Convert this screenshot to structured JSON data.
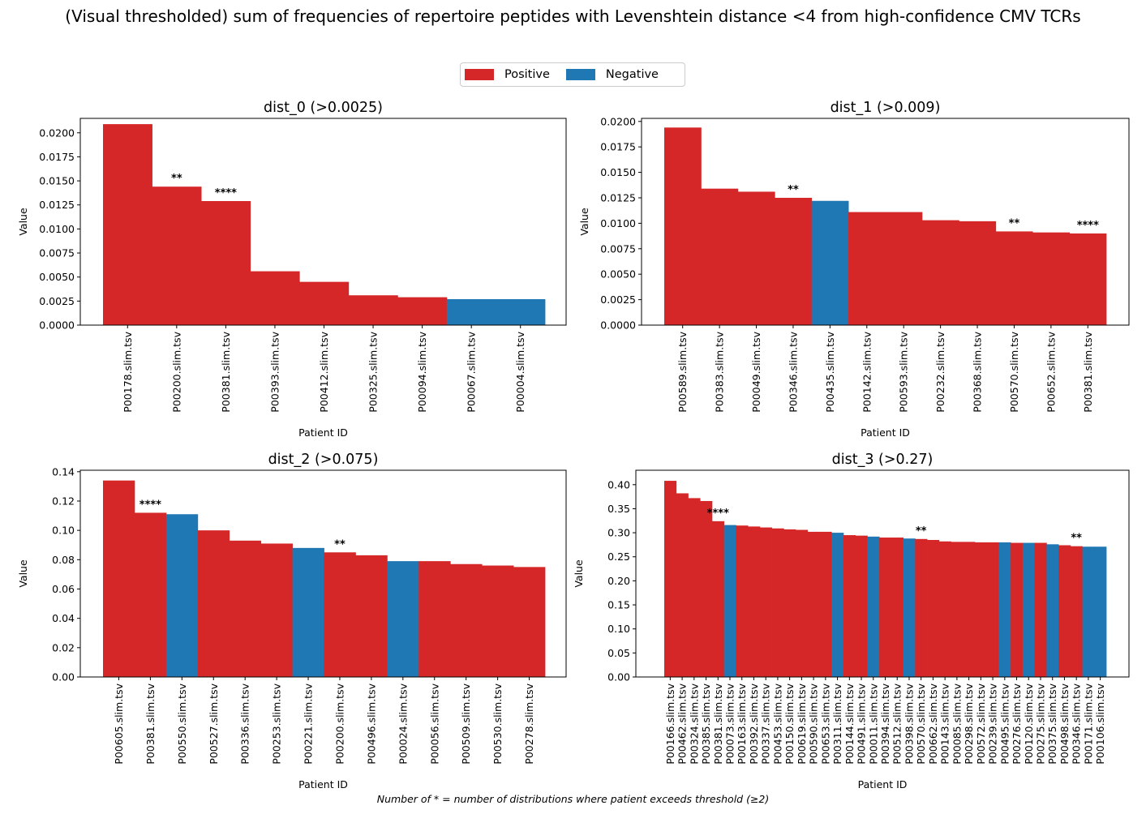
{
  "title": "(Visual thresholded) sum of frequencies of repertoire peptides with Levenshtein distance <4 from high-confidence CMV TCRs",
  "footnote": "Number of * = number of distributions where patient exceeds threshold (≥2)",
  "legend": {
    "placement": "top-center",
    "items": [
      {
        "label": "Positive",
        "color": "#d62728"
      },
      {
        "label": "Negative",
        "color": "#1f77b4"
      }
    ]
  },
  "colors": {
    "positive": "#d62728",
    "negative": "#1f77b4"
  },
  "chart_data": [
    {
      "type": "bar",
      "title": "dist_0 (>0.0025)",
      "xlabel": "Patient ID",
      "ylabel": "Value",
      "ylim": [
        0,
        0.0215
      ],
      "yticks": [
        0,
        0.0025,
        0.005,
        0.0075,
        0.01,
        0.0125,
        0.015,
        0.0175,
        0.02
      ],
      "ytick_labels": [
        "0.0000",
        "0.0025",
        "0.0050",
        "0.0075",
        "0.0100",
        "0.0125",
        "0.0150",
        "0.0175",
        "0.0200"
      ],
      "grid": false,
      "categories": [
        "P00178.slim.tsv",
        "P00200.slim.tsv",
        "P00381.slim.tsv",
        "P00393.slim.tsv",
        "P00412.slim.tsv",
        "P00325.slim.tsv",
        "P00094.slim.tsv",
        "P00067.slim.tsv",
        "P00004.slim.tsv"
      ],
      "values": [
        0.0209,
        0.0144,
        0.0129,
        0.0056,
        0.0045,
        0.0031,
        0.0029,
        0.0027,
        0.0027
      ],
      "status": [
        "Positive",
        "Positive",
        "Positive",
        "Positive",
        "Positive",
        "Positive",
        "Positive",
        "Negative",
        "Negative"
      ],
      "stars": [
        "",
        "**",
        "****",
        "",
        "",
        "",
        "",
        "",
        ""
      ]
    },
    {
      "type": "bar",
      "title": "dist_1 (>0.009)",
      "xlabel": "Patient ID",
      "ylabel": "Value",
      "ylim": [
        0,
        0.0203
      ],
      "yticks": [
        0,
        0.0025,
        0.005,
        0.0075,
        0.01,
        0.0125,
        0.015,
        0.0175,
        0.02
      ],
      "ytick_labels": [
        "0.0000",
        "0.0025",
        "0.0050",
        "0.0075",
        "0.0100",
        "0.0125",
        "0.0150",
        "0.0175",
        "0.0200"
      ],
      "grid": false,
      "categories": [
        "P00589.slim.tsv",
        "P00383.slim.tsv",
        "P00049.slim.tsv",
        "P00346.slim.tsv",
        "P00435.slim.tsv",
        "P00142.slim.tsv",
        "P00593.slim.tsv",
        "P00232.slim.tsv",
        "P00368.slim.tsv",
        "P00570.slim.tsv",
        "P00652.slim.tsv",
        "P00381.slim.tsv"
      ],
      "values": [
        0.0194,
        0.0134,
        0.0131,
        0.0125,
        0.0122,
        0.0111,
        0.0111,
        0.0103,
        0.0102,
        0.0092,
        0.0091,
        0.009
      ],
      "status": [
        "Positive",
        "Positive",
        "Positive",
        "Positive",
        "Negative",
        "Positive",
        "Positive",
        "Positive",
        "Positive",
        "Positive",
        "Positive",
        "Positive"
      ],
      "stars": [
        "",
        "",
        "",
        "**",
        "",
        "",
        "",
        "",
        "",
        "**",
        "",
        "****"
      ]
    },
    {
      "type": "bar",
      "title": "dist_2 (>0.075)",
      "xlabel": "Patient ID",
      "ylabel": "Value",
      "ylim": [
        0,
        0.141
      ],
      "yticks": [
        0,
        0.02,
        0.04,
        0.06,
        0.08,
        0.1,
        0.12,
        0.14
      ],
      "ytick_labels": [
        "0.00",
        "0.02",
        "0.04",
        "0.06",
        "0.08",
        "0.10",
        "0.12",
        "0.14"
      ],
      "grid": false,
      "categories": [
        "P00605.slim.tsv",
        "P00381.slim.tsv",
        "P00550.slim.tsv",
        "P00527.slim.tsv",
        "P00336.slim.tsv",
        "P00253.slim.tsv",
        "P00221.slim.tsv",
        "P00200.slim.tsv",
        "P00496.slim.tsv",
        "P00024.slim.tsv",
        "P00056.slim.tsv",
        "P00509.slim.tsv",
        "P00530.slim.tsv",
        "P00278.slim.tsv"
      ],
      "values": [
        0.134,
        0.112,
        0.111,
        0.1,
        0.093,
        0.091,
        0.088,
        0.085,
        0.083,
        0.079,
        0.079,
        0.077,
        0.076,
        0.075
      ],
      "status": [
        "Positive",
        "Positive",
        "Negative",
        "Positive",
        "Positive",
        "Positive",
        "Negative",
        "Positive",
        "Positive",
        "Negative",
        "Positive",
        "Positive",
        "Positive",
        "Positive"
      ],
      "stars": [
        "",
        "****",
        "",
        "",
        "",
        "",
        "",
        "**",
        "",
        "",
        "",
        "",
        "",
        ""
      ]
    },
    {
      "type": "bar",
      "title": "dist_3 (>0.27)",
      "xlabel": "Patient ID",
      "ylabel": "Value",
      "ylim": [
        0,
        0.43
      ],
      "yticks": [
        0,
        0.05,
        0.1,
        0.15,
        0.2,
        0.25,
        0.3,
        0.35,
        0.4
      ],
      "ytick_labels": [
        "0.00",
        "0.05",
        "0.10",
        "0.15",
        "0.20",
        "0.25",
        "0.30",
        "0.35",
        "0.40"
      ],
      "grid": false,
      "categories": [
        "P00166.slim.tsv",
        "P00462.slim.tsv",
        "P00324.slim.tsv",
        "P00385.slim.tsv",
        "P00381.slim.tsv",
        "P00073.slim.tsv",
        "P00163.slim.tsv",
        "P00392.slim.tsv",
        "P00337.slim.tsv",
        "P00453.slim.tsv",
        "P00150.slim.tsv",
        "P00619.slim.tsv",
        "P00590.slim.tsv",
        "P00653.slim.tsv",
        "P00311.slim.tsv",
        "P00144.slim.tsv",
        "P00491.slim.tsv",
        "P00011.slim.tsv",
        "P00394.slim.tsv",
        "P00512.slim.tsv",
        "P00398.slim.tsv",
        "P00570.slim.tsv",
        "P00662.slim.tsv",
        "P00143.slim.tsv",
        "P00085.slim.tsv",
        "P00298.slim.tsv",
        "P00572.slim.tsv",
        "P00239.slim.tsv",
        "P00495.slim.tsv",
        "P00276.slim.tsv",
        "P00120.slim.tsv",
        "P00275.slim.tsv",
        "P00375.slim.tsv",
        "P00498.slim.tsv",
        "P00346.slim.tsv",
        "P00171.slim.tsv",
        "P00106.slim.tsv"
      ],
      "values": [
        0.408,
        0.382,
        0.372,
        0.366,
        0.324,
        0.316,
        0.315,
        0.313,
        0.311,
        0.309,
        0.307,
        0.306,
        0.302,
        0.302,
        0.3,
        0.295,
        0.294,
        0.292,
        0.29,
        0.29,
        0.288,
        0.287,
        0.285,
        0.282,
        0.281,
        0.281,
        0.28,
        0.28,
        0.28,
        0.279,
        0.279,
        0.279,
        0.276,
        0.274,
        0.272,
        0.271,
        0.271
      ],
      "status": [
        "Positive",
        "Positive",
        "Positive",
        "Positive",
        "Positive",
        "Negative",
        "Positive",
        "Positive",
        "Positive",
        "Positive",
        "Positive",
        "Positive",
        "Positive",
        "Positive",
        "Negative",
        "Positive",
        "Positive",
        "Negative",
        "Positive",
        "Positive",
        "Negative",
        "Positive",
        "Positive",
        "Positive",
        "Positive",
        "Positive",
        "Positive",
        "Positive",
        "Negative",
        "Positive",
        "Negative",
        "Positive",
        "Negative",
        "Positive",
        "Positive",
        "Negative",
        "Negative"
      ],
      "stars": [
        "",
        "",
        "",
        "",
        "****",
        "",
        "",
        "",
        "",
        "",
        "",
        "",
        "",
        "",
        "",
        "",
        "",
        "",
        "",
        "",
        "",
        "**",
        "",
        "",
        "",
        "",
        "",
        "",
        "",
        "",
        "",
        "",
        "",
        "",
        "**",
        "",
        ""
      ]
    }
  ]
}
